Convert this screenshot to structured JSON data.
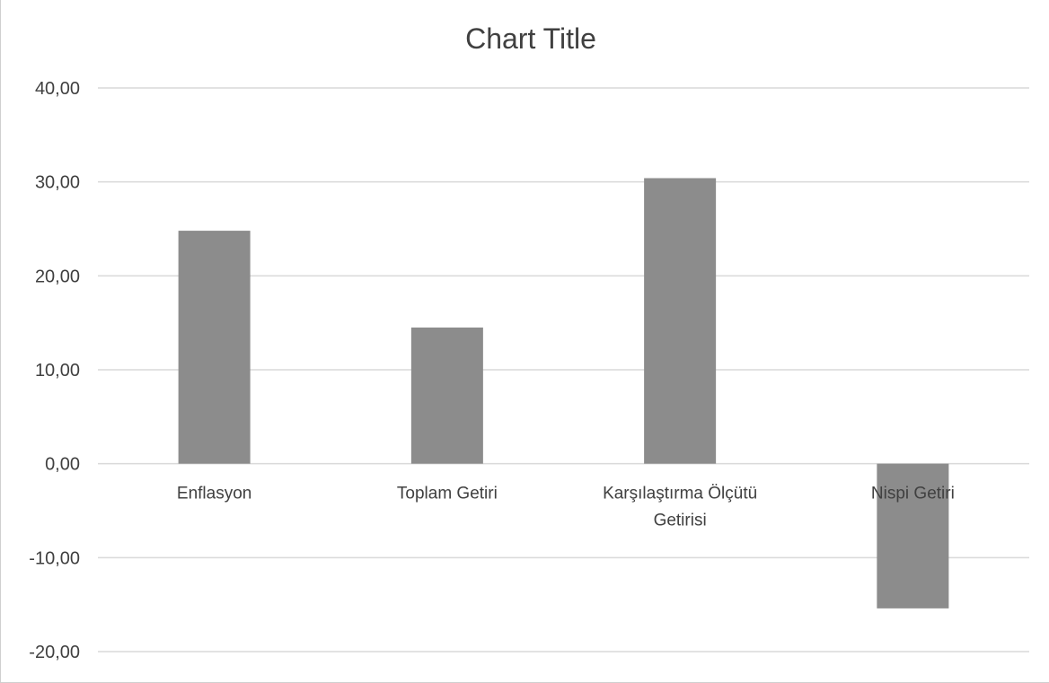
{
  "chart_data": {
    "type": "bar",
    "title": "Chart Title",
    "xlabel": "",
    "ylabel": "",
    "categories": [
      [
        "Enflasyon"
      ],
      [
        "Toplam Getiri"
      ],
      [
        "Karşılaştırma Ölçütü",
        "Getirisi"
      ],
      [
        "Nispi Getiri"
      ]
    ],
    "values": [
      24.8,
      14.5,
      30.4,
      -15.4
    ],
    "ylim": [
      -20,
      40
    ],
    "yticks": [
      "-20,00",
      "-10,00",
      "0,00",
      "10,00",
      "20,00",
      "30,00",
      "40,00"
    ],
    "grid": true,
    "legend": "none",
    "bar_color": "#8c8c8c",
    "grid_color": "#d9d9d9",
    "text_color": "#404040"
  }
}
